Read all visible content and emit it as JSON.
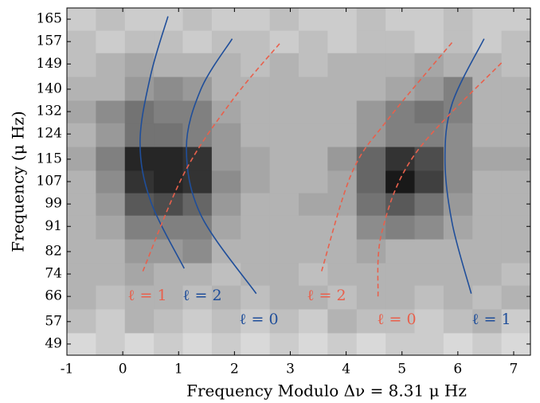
{
  "chart_data": {
    "type": "heatmap",
    "xlabel": "Frequency Modulo Δν  = 8.31 μ Hz",
    "ylabel": "Frequency (μ Hz)",
    "xlim": [
      -1,
      7.3
    ],
    "ylim": [
      45,
      169
    ],
    "xticks": [
      -1,
      0,
      1,
      2,
      3,
      4,
      5,
      6,
      7
    ],
    "yticks": [
      49,
      57,
      66,
      74,
      82,
      91,
      99,
      107,
      115,
      124,
      132,
      140,
      149,
      157,
      165
    ],
    "z": [
      [
        0.15,
        0.2,
        0.15,
        0.2,
        0.15,
        0.2,
        0.15,
        0.2,
        0.15,
        0.2,
        0.15,
        0.2,
        0.2,
        0.15,
        0.2,
        0.15
      ],
      [
        0.25,
        0.2,
        0.3,
        0.25,
        0.2,
        0.25,
        0.2,
        0.25,
        0.2,
        0.3,
        0.25,
        0.25,
        0.2,
        0.25,
        0.3,
        0.2
      ],
      [
        0.3,
        0.25,
        0.3,
        0.3,
        0.25,
        0.3,
        0.25,
        0.3,
        0.3,
        0.25,
        0.3,
        0.3,
        0.25,
        0.3,
        0.25,
        0.3
      ],
      [
        0.3,
        0.3,
        0.35,
        0.3,
        0.3,
        0.25,
        0.3,
        0.3,
        0.25,
        0.3,
        0.3,
        0.3,
        0.3,
        0.3,
        0.3,
        0.25
      ],
      [
        0.3,
        0.3,
        0.4,
        0.4,
        0.45,
        0.3,
        0.3,
        0.3,
        0.3,
        0.3,
        0.35,
        0.3,
        0.3,
        0.3,
        0.3,
        0.3
      ],
      [
        0.3,
        0.35,
        0.5,
        0.5,
        0.5,
        0.35,
        0.3,
        0.3,
        0.3,
        0.3,
        0.45,
        0.5,
        0.45,
        0.35,
        0.3,
        0.3
      ],
      [
        0.3,
        0.4,
        0.65,
        0.7,
        0.6,
        0.4,
        0.3,
        0.3,
        0.35,
        0.35,
        0.55,
        0.65,
        0.55,
        0.4,
        0.3,
        0.3
      ],
      [
        0.3,
        0.45,
        0.8,
        0.85,
        0.8,
        0.45,
        0.35,
        0.3,
        0.3,
        0.35,
        0.6,
        0.9,
        0.75,
        0.45,
        0.3,
        0.3
      ],
      [
        0.35,
        0.5,
        0.85,
        0.85,
        0.8,
        0.4,
        0.35,
        0.3,
        0.3,
        0.4,
        0.6,
        0.8,
        0.7,
        0.45,
        0.35,
        0.35
      ],
      [
        0.3,
        0.4,
        0.55,
        0.55,
        0.5,
        0.4,
        0.3,
        0.3,
        0.3,
        0.3,
        0.4,
        0.5,
        0.5,
        0.45,
        0.3,
        0.3
      ],
      [
        0.35,
        0.45,
        0.55,
        0.5,
        0.5,
        0.35,
        0.3,
        0.3,
        0.3,
        0.3,
        0.4,
        0.5,
        0.55,
        0.5,
        0.3,
        0.3
      ],
      [
        0.3,
        0.3,
        0.4,
        0.45,
        0.4,
        0.3,
        0.3,
        0.3,
        0.3,
        0.3,
        0.3,
        0.35,
        0.4,
        0.5,
        0.3,
        0.3
      ],
      [
        0.25,
        0.3,
        0.35,
        0.3,
        0.3,
        0.3,
        0.25,
        0.3,
        0.25,
        0.3,
        0.3,
        0.3,
        0.35,
        0.3,
        0.3,
        0.25
      ],
      [
        0.25,
        0.2,
        0.25,
        0.25,
        0.2,
        0.25,
        0.25,
        0.2,
        0.25,
        0.2,
        0.25,
        0.25,
        0.2,
        0.25,
        0.2,
        0.25
      ],
      [
        0.2,
        0.25,
        0.2,
        0.2,
        0.25,
        0.2,
        0.2,
        0.25,
        0.2,
        0.2,
        0.25,
        0.2,
        0.2,
        0.25,
        0.2,
        0.2
      ]
    ],
    "series": [
      {
        "name": "ℓ = 1",
        "color": "#1f4e9a",
        "dash": false,
        "x": [
          0.81,
          0.5,
          0.31,
          0.5,
          1.1
        ],
        "y": [
          166,
          145,
          121,
          100,
          76
        ]
      },
      {
        "name": "ℓ = 2",
        "color": "#1f4e9a",
        "dash": false,
        "x": [
          1.96,
          1.4,
          1.14,
          1.4,
          2.39
        ],
        "y": [
          158,
          140,
          119,
          95,
          67
        ]
      },
      {
        "name": "ℓ = 0",
        "color": "#1f4e9a",
        "dash": false,
        "x": [
          6.47,
          5.9,
          5.77,
          5.9,
          6.24
        ],
        "y": [
          158,
          135,
          115,
          92,
          67
        ]
      },
      {
        "name": "ℓ = 1",
        "color": "#e8604c",
        "dash": true,
        "x": [
          0.36,
          1.1,
          1.96,
          2.84
        ],
        "y": [
          75,
          110,
          136,
          157
        ]
      },
      {
        "name": "ℓ = 2",
        "color": "#e8604c",
        "dash": true,
        "x": [
          3.56,
          4.1,
          4.74,
          5.91
        ],
        "y": [
          75,
          110,
          129,
          157
        ]
      },
      {
        "name": "ℓ = 0",
        "color": "#e8604c",
        "dash": true,
        "x": [
          4.57,
          4.64,
          5.24,
          6.81
        ],
        "y": [
          66,
          89,
          117,
          150
        ]
      }
    ]
  }
}
